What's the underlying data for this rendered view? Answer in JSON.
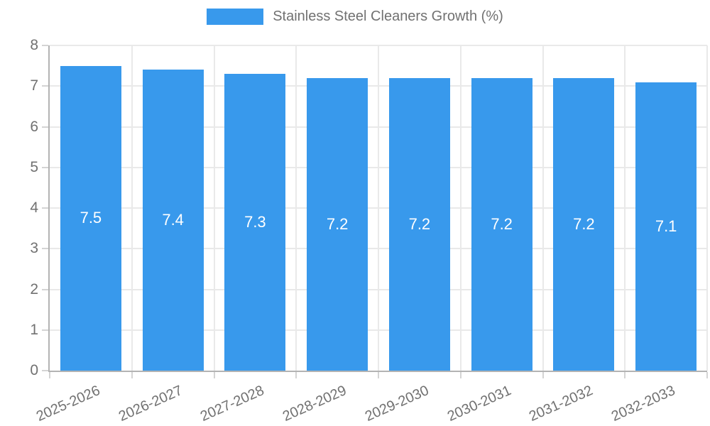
{
  "legend": {
    "label": "Stainless Steel Cleaners Growth (%)"
  },
  "chart_data": {
    "type": "bar",
    "title": "Stainless Steel Cleaners Growth (%)",
    "categories": [
      "2025-2026",
      "2026-2027",
      "2027-2028",
      "2028-2029",
      "2029-2030",
      "2030-2031",
      "2031-2032",
      "2032-2033"
    ],
    "values": [
      7.5,
      7.4,
      7.3,
      7.2,
      7.2,
      7.2,
      7.2,
      7.1
    ],
    "value_labels": [
      "7.5",
      "7.4",
      "7.3",
      "7.2",
      "7.2",
      "7.2",
      "7.2",
      "7.1"
    ],
    "xlabel": "",
    "ylabel": "",
    "ylim": [
      0,
      8
    ],
    "ytick_step": 1,
    "yticks": [
      "0",
      "1",
      "2",
      "3",
      "4",
      "5",
      "6",
      "7",
      "8"
    ],
    "grid": true,
    "legend_position": "top",
    "colors": {
      "bar": "#3899ec",
      "value_label": "#ffffff",
      "axis_text": "#717171",
      "gridline": "#e9e9e9",
      "axis_line": "#b3b3b3"
    }
  }
}
